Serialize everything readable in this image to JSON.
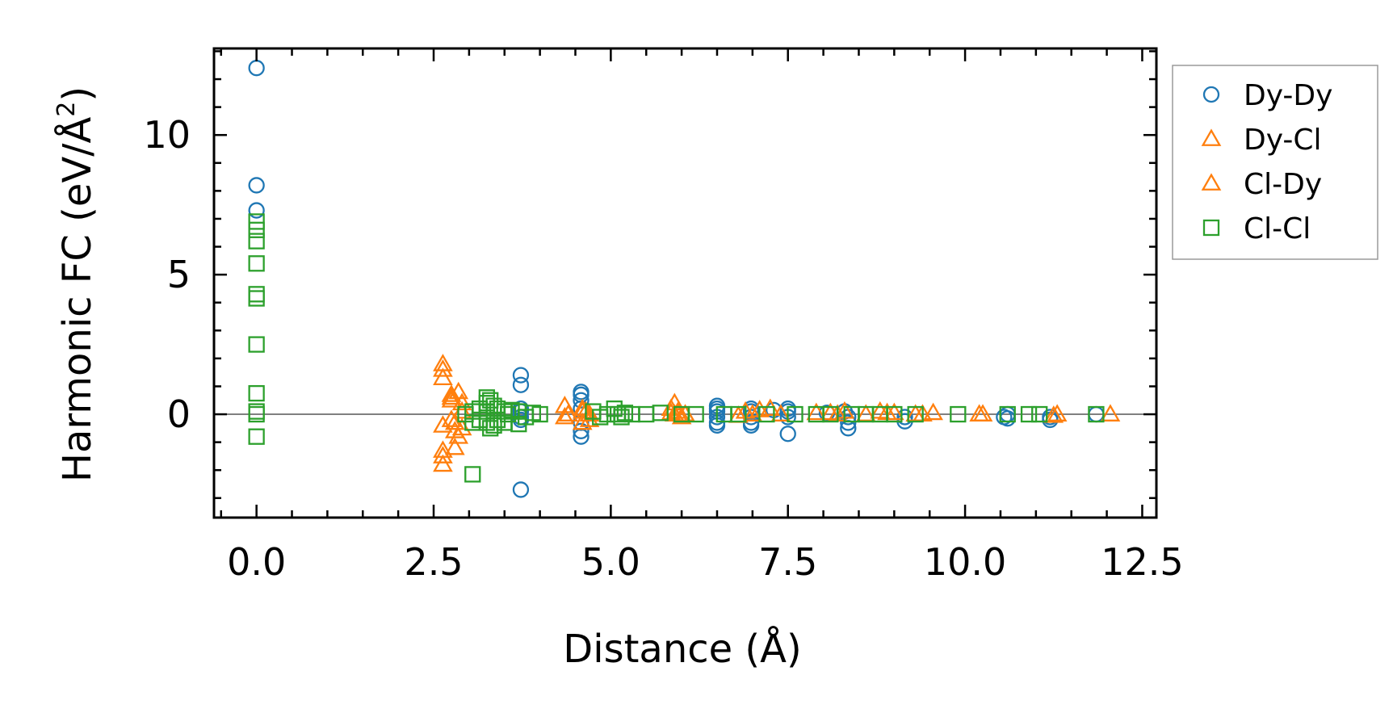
{
  "chart_data": {
    "type": "scatter",
    "title": "",
    "xlabel": "Distance (Å)",
    "ylabel": "Harmonic FC (eV/Å",
    "ylabel_superscript": "2",
    "ylabel_close": ")",
    "xlim": [
      -0.6,
      12.7
    ],
    "ylim": [
      -3.7,
      13.1
    ],
    "x_ticks": [
      0.0,
      2.5,
      5.0,
      7.5,
      10.0,
      12.5
    ],
    "x_tick_labels": [
      "0.0",
      "2.5",
      "5.0",
      "7.5",
      "10.0",
      "12.5"
    ],
    "y_ticks": [
      0,
      5,
      10
    ],
    "y_tick_labels": [
      "0",
      "5",
      "10"
    ],
    "grid": false,
    "reference_line_y": 0,
    "legend_position": "outside-right",
    "colors": {
      "Dy-Dy": "#1f77b4",
      "Dy-Cl": "#ff7f0e",
      "Cl-Dy": "#ff7f0e",
      "Cl-Cl": "#2ca02c",
      "refline": "#808080"
    },
    "series": [
      {
        "name": "Dy-Dy",
        "marker": "circle",
        "x": [
          0.0,
          0.0,
          0.0,
          3.73,
          3.73,
          3.73,
          3.73,
          3.73,
          3.73,
          3.73,
          4.58,
          4.58,
          4.58,
          4.58,
          4.58,
          4.58,
          4.58,
          6.5,
          6.5,
          6.5,
          6.5,
          6.5,
          6.5,
          6.98,
          6.98,
          6.98,
          6.98,
          6.98,
          7.3,
          7.5,
          7.5,
          7.5,
          7.5,
          8.05,
          8.3,
          8.35,
          8.35,
          8.35,
          9.15,
          9.15,
          10.55,
          10.6,
          10.6,
          11.2,
          11.2,
          11.85
        ],
        "y": [
          12.4,
          8.2,
          7.3,
          1.4,
          1.05,
          0.1,
          -0.2,
          -0.1,
          0.2,
          -2.7,
          0.8,
          0.7,
          0.5,
          0.2,
          -0.3,
          -0.6,
          -0.8,
          0.3,
          0.2,
          0.1,
          -0.1,
          -0.3,
          -0.4,
          0.2,
          0.1,
          -0.1,
          -0.3,
          -0.4,
          0.15,
          0.2,
          0.1,
          -0.1,
          -0.7,
          0.05,
          0.1,
          -0.1,
          -0.3,
          -0.5,
          -0.1,
          -0.25,
          -0.1,
          0.0,
          -0.15,
          -0.1,
          -0.2,
          0.0
        ]
      },
      {
        "name": "Dy-Cl",
        "marker": "triangle",
        "x": [
          2.63,
          2.63,
          2.63,
          2.63,
          2.63,
          2.75,
          2.75,
          2.75,
          2.8,
          2.8,
          2.85,
          2.9,
          2.9,
          4.35,
          4.35,
          4.6,
          4.6,
          4.65,
          4.7,
          5.85,
          5.9,
          5.9,
          5.95,
          6.0,
          6.05,
          6.9,
          7.1,
          7.25,
          8.1,
          8.3,
          8.8,
          8.9,
          9.3,
          9.55,
          10.2,
          11.3,
          12.05
        ],
        "y": [
          1.8,
          1.6,
          -0.4,
          -1.5,
          -1.8,
          0.7,
          0.5,
          -0.2,
          -0.6,
          -1.2,
          0.8,
          0.4,
          -0.5,
          0.3,
          -0.1,
          0.2,
          -0.3,
          0.1,
          -0.2,
          0.2,
          0.4,
          0.0,
          0.1,
          -0.1,
          0.0,
          0.1,
          0.15,
          0.2,
          0.05,
          0.1,
          0.1,
          0.05,
          0.0,
          0.05,
          0.0,
          0.0,
          0.0
        ]
      },
      {
        "name": "Cl-Dy",
        "marker": "triangle",
        "x": [
          2.63,
          2.63,
          2.75,
          2.8,
          2.85,
          2.9,
          4.4,
          4.6,
          4.7,
          5.85,
          5.95,
          6.05,
          6.8,
          7.0,
          7.4,
          7.9,
          8.2,
          8.6,
          9.0,
          9.4,
          10.25,
          11.25
        ],
        "y": [
          1.3,
          -1.3,
          0.6,
          -0.3,
          -0.8,
          0.1,
          0.0,
          0.1,
          0.0,
          0.05,
          0.0,
          0.0,
          -0.05,
          0.0,
          0.0,
          0.05,
          0.0,
          0.0,
          0.05,
          0.0,
          0.0,
          -0.05
        ],
        "fill_note": "drawn with Dy-Cl"
      },
      {
        "name": "Cl-Cl",
        "marker": "square",
        "x": [
          0.0,
          0.0,
          0.0,
          0.0,
          0.0,
          0.0,
          0.0,
          0.0,
          0.0,
          0.0,
          0.0,
          2.95,
          3.05,
          3.05,
          3.05,
          3.15,
          3.15,
          3.25,
          3.25,
          3.25,
          3.25,
          3.3,
          3.3,
          3.35,
          3.35,
          3.4,
          3.4,
          3.5,
          3.5,
          3.55,
          3.6,
          3.7,
          3.7,
          3.8,
          3.9,
          4.0,
          4.75,
          4.85,
          4.95,
          5.05,
          5.1,
          5.15,
          5.2,
          5.3,
          5.5,
          5.7,
          6.0,
          6.2,
          6.6,
          6.8,
          7.2,
          7.6,
          7.9,
          8.1,
          8.4,
          8.6,
          8.8,
          9.0,
          9.3,
          9.9,
          10.6,
          10.9,
          11.05,
          11.85
        ],
        "y": [
          6.9,
          6.6,
          6.2,
          5.4,
          4.3,
          4.15,
          2.5,
          0.75,
          -0.8,
          0.1,
          0.0,
          0.0,
          0.1,
          -0.3,
          -2.15,
          0.2,
          -0.2,
          0.6,
          0.4,
          0.1,
          -0.3,
          0.5,
          -0.5,
          0.3,
          -0.4,
          0.2,
          -0.2,
          0.1,
          -0.3,
          0.0,
          0.15,
          0.1,
          -0.35,
          -0.1,
          0.05,
          0.0,
          0.1,
          -0.1,
          0.0,
          0.2,
          0.0,
          -0.1,
          0.05,
          0.0,
          0.0,
          0.05,
          0.0,
          0.0,
          0.0,
          0.0,
          0.0,
          0.0,
          0.0,
          0.0,
          0.0,
          0.0,
          0.0,
          0.0,
          0.0,
          0.0,
          0.0,
          0.0,
          0.0,
          0.0
        ]
      }
    ],
    "legend": [
      {
        "label": "Dy-Dy",
        "marker": "circle",
        "color": "#1f77b4"
      },
      {
        "label": "Dy-Cl",
        "marker": "triangle",
        "color": "#ff7f0e"
      },
      {
        "label": "Cl-Dy",
        "marker": "triangle",
        "color": "#ff7f0e"
      },
      {
        "label": "Cl-Cl",
        "marker": "square",
        "color": "#2ca02c"
      }
    ]
  }
}
